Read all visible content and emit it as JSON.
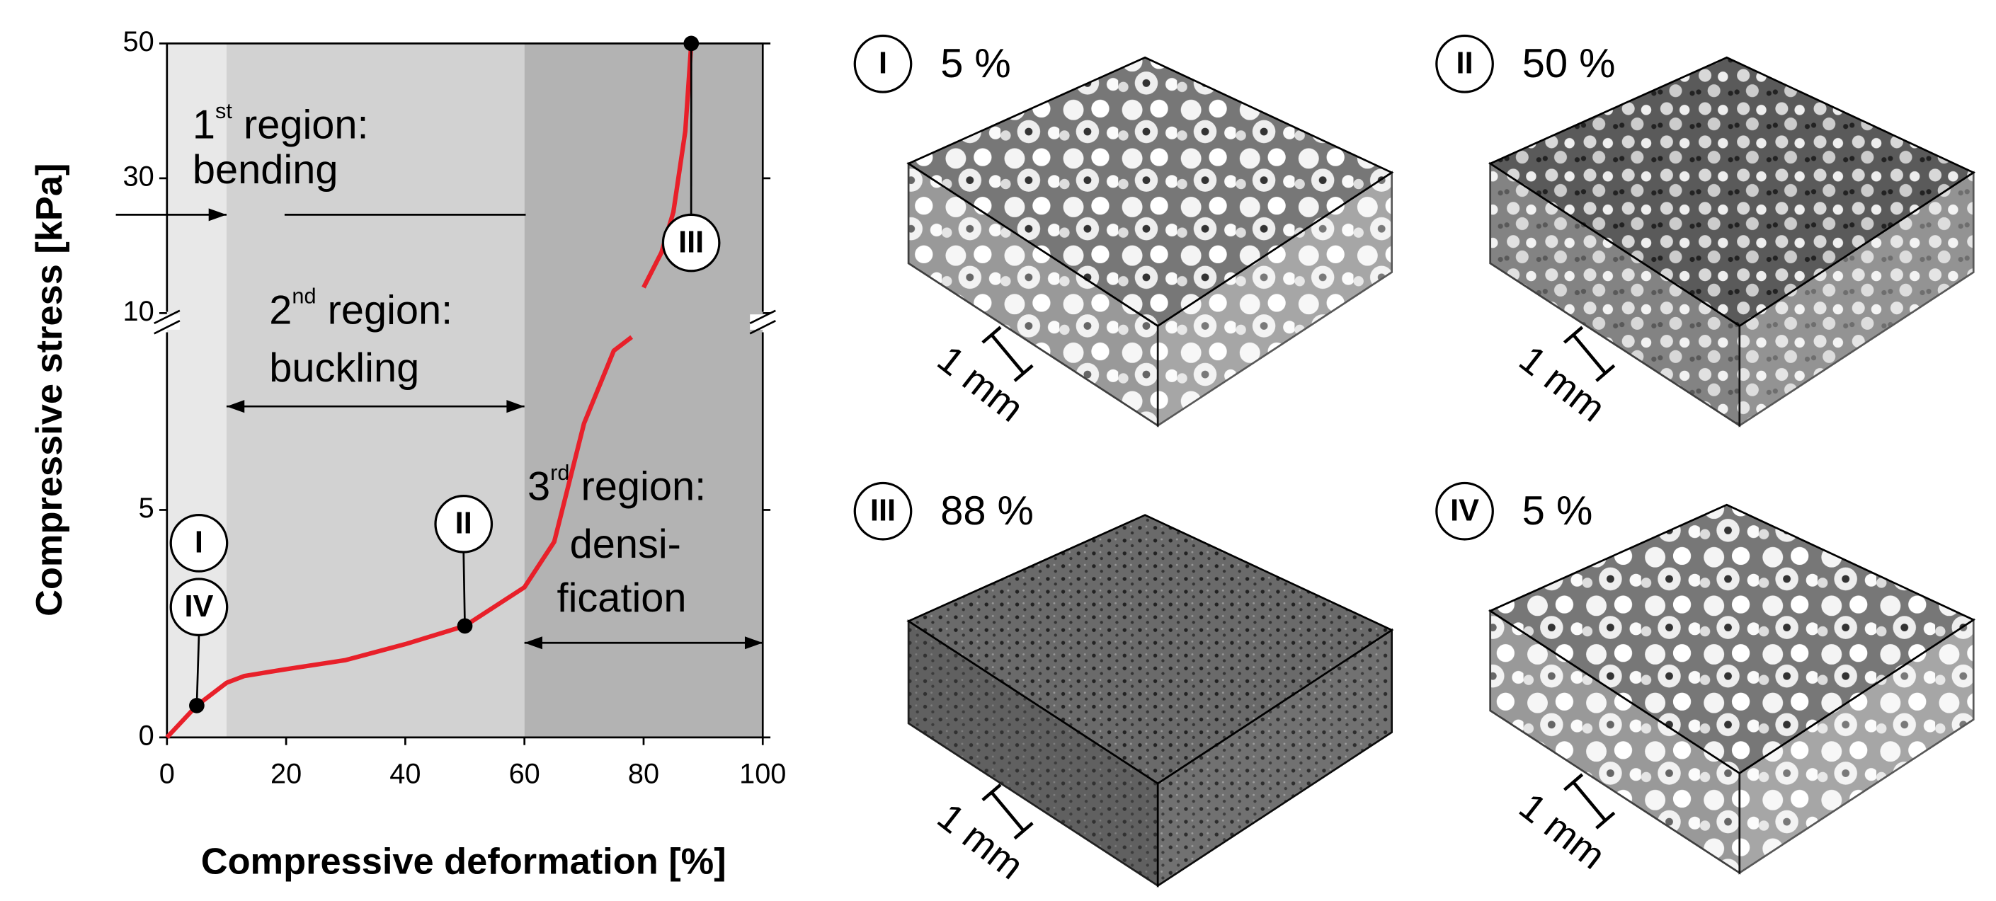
{
  "chart_data": {
    "type": "line",
    "x_label": "Compressive deformation [%]",
    "y_label": "Compressive stress [kPa]",
    "xlim": [
      0,
      100
    ],
    "xticks": [
      0,
      20,
      40,
      60,
      80,
      100
    ],
    "ylim": [
      0,
      50
    ],
    "yticks": [
      0,
      5,
      10,
      30,
      50
    ],
    "axis_break": true,
    "regions": [
      {
        "from": 0,
        "to": 10,
        "color": "#e8e8e8",
        "sup_prefix": "1",
        "sup": "st",
        "rest": " region:",
        "line2": "bending"
      },
      {
        "from": 10,
        "to": 60,
        "color": "#d2d2d2",
        "sup_prefix": "2",
        "sup": "nd",
        "rest": " region:",
        "line2": "buckling"
      },
      {
        "from": 60,
        "to": 100,
        "color": "#b3b3b3",
        "sup_prefix": "3",
        "sup": "rd",
        "rest": " region:",
        "line2": "densi-",
        "line3": "fication"
      }
    ],
    "series": [
      {
        "color": "#e8202a",
        "x": [
          0,
          5,
          10,
          13,
          20,
          30,
          40,
          50,
          60,
          65,
          70,
          75,
          78,
          79,
          80,
          83,
          85,
          87,
          88
        ],
        "values": [
          0,
          0.7,
          1.2,
          1.35,
          1.5,
          1.7,
          2.05,
          2.45,
          3.3,
          4.3,
          6.9,
          8.5,
          8.8,
          null,
          13.8,
          19,
          25,
          37,
          50
        ]
      }
    ],
    "points": [
      {
        "x": 5,
        "y": 0.7,
        "labels": [
          "I",
          "IV"
        ]
      },
      {
        "x": 50,
        "y": 2.45,
        "labels": [
          "II"
        ]
      },
      {
        "x": 88,
        "y": 50,
        "labels": [
          "III"
        ]
      }
    ]
  },
  "panels": [
    {
      "label": "I",
      "strain": "5 %",
      "scale": "1 mm"
    },
    {
      "label": "II",
      "strain": "50 %",
      "scale": "1 mm"
    },
    {
      "label": "III",
      "strain": "88 %",
      "scale": "1 mm"
    },
    {
      "label": "IV",
      "strain": "5 %",
      "scale": "1 mm"
    }
  ]
}
